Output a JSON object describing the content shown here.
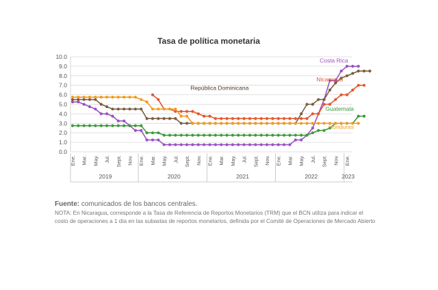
{
  "chart_data": {
    "type": "line",
    "title": "Tasa de política monetaria",
    "xlabel": "",
    "ylabel": "",
    "ylim": [
      0,
      10
    ],
    "yticks": [
      "0.0",
      "1.0",
      "2.0",
      "3.0",
      "4.0",
      "5.0",
      "6.0",
      "7.0",
      "8.0",
      "9.0",
      "10.0"
    ],
    "grid": true,
    "legend": "inline labels near series ends",
    "x_tick_labels": [
      "Ene.",
      "Mar.",
      "May.",
      "Jul.",
      "Sept.",
      "Nov.",
      "Ene.",
      "Mar.",
      "May.",
      "Jul.",
      "Sept.",
      "Nov.",
      "Ene.",
      "Mar.",
      "May.",
      "Jul.",
      "Sept.",
      "Nov.",
      "Ene.",
      "Mar.",
      "May.",
      "Jul.",
      "Sept.",
      "Nov.",
      "Ene."
    ],
    "years": [
      "2019",
      "2020",
      "2021",
      "2022",
      "2023"
    ],
    "series": [
      {
        "name": "Costa Rica",
        "color": "#9b4fc4",
        "label_x": 48.2,
        "label_y": 9.4,
        "start": 0,
        "values": [
          5.25,
          5.25,
          5.0,
          4.75,
          4.5,
          4.0,
          4.0,
          3.75,
          3.25,
          3.25,
          2.75,
          2.25,
          2.25,
          1.25,
          1.25,
          1.25,
          0.75,
          0.75,
          0.75,
          0.75,
          0.75,
          0.75,
          0.75,
          0.75,
          0.75,
          0.75,
          0.75,
          0.75,
          0.75,
          0.75,
          0.75,
          0.75,
          0.75,
          0.75,
          0.75,
          0.75,
          0.75,
          0.75,
          0.75,
          1.25,
          1.25,
          1.75,
          2.5,
          4.0,
          5.5,
          7.5,
          7.5,
          8.5,
          9.0,
          9.0,
          9.0
        ]
      },
      {
        "name": "Nicaragua",
        "color": "#e2562c",
        "label_x": 47.3,
        "label_y": 7.4,
        "start": 14,
        "values": [
          6.0,
          5.5,
          4.5,
          4.5,
          4.25,
          4.25,
          4.25,
          4.25,
          4.0,
          3.75,
          3.75,
          3.5,
          3.5,
          3.5,
          3.5,
          3.5,
          3.5,
          3.5,
          3.5,
          3.5,
          3.5,
          3.5,
          3.5,
          3.5,
          3.5,
          3.5,
          3.5,
          3.5,
          4.0,
          4.0,
          5.0,
          5.0,
          5.5,
          6.0,
          6.0,
          6.5,
          7.0,
          7.0
        ]
      },
      {
        "name": "República Dominicana",
        "color": "#7a5c3e",
        "label_x": 30.8,
        "label_y": 6.5,
        "start": 0,
        "values": [
          5.5,
          5.5,
          5.5,
          5.5,
          5.5,
          5.0,
          4.75,
          4.5,
          4.5,
          4.5,
          4.5,
          4.5,
          4.5,
          3.5,
          3.5,
          3.5,
          3.5,
          3.5,
          3.5,
          3.0,
          3.0,
          3.0,
          3.0,
          3.0,
          3.0,
          3.0,
          3.0,
          3.0,
          3.0,
          3.0,
          3.0,
          3.0,
          3.0,
          3.0,
          3.0,
          3.0,
          3.0,
          3.0,
          3.0,
          3.0,
          4.0,
          5.0,
          5.0,
          5.5,
          5.5,
          6.5,
          7.25,
          7.75,
          8.0,
          8.25,
          8.5,
          8.5,
          8.5
        ]
      },
      {
        "name": "Guatemala",
        "color": "#3a9a3a",
        "label_x": 49.2,
        "label_y": 4.3,
        "start": 0,
        "values": [
          2.75,
          2.75,
          2.75,
          2.75,
          2.75,
          2.75,
          2.75,
          2.75,
          2.75,
          2.75,
          2.75,
          2.75,
          2.75,
          2.0,
          2.0,
          2.0,
          1.75,
          1.75,
          1.75,
          1.75,
          1.75,
          1.75,
          1.75,
          1.75,
          1.75,
          1.75,
          1.75,
          1.75,
          1.75,
          1.75,
          1.75,
          1.75,
          1.75,
          1.75,
          1.75,
          1.75,
          1.75,
          1.75,
          1.75,
          1.75,
          1.75,
          1.75,
          2.0,
          2.25,
          2.25,
          2.5,
          3.0,
          3.0,
          3.0,
          3.0,
          3.75,
          3.75
        ]
      },
      {
        "name": "Honduras",
        "color": "#f29a1d",
        "label_x": 49.2,
        "label_y": 2.4,
        "start": 0,
        "values": [
          5.75,
          5.75,
          5.75,
          5.75,
          5.75,
          5.75,
          5.75,
          5.75,
          5.75,
          5.75,
          5.75,
          5.75,
          5.5,
          5.25,
          4.5,
          4.5,
          4.5,
          4.5,
          4.5,
          3.75,
          3.75,
          3.0,
          3.0,
          3.0,
          3.0,
          3.0,
          3.0,
          3.0,
          3.0,
          3.0,
          3.0,
          3.0,
          3.0,
          3.0,
          3.0,
          3.0,
          3.0,
          3.0,
          3.0,
          3.0,
          3.0,
          3.0,
          3.0,
          3.0,
          3.0,
          3.0,
          3.0,
          3.0,
          3.0,
          3.0,
          3.0
        ]
      }
    ]
  },
  "notes": {
    "source_label": "Fuente:",
    "source_text": " comunicados de los bancos centrales.",
    "note": "NOTA: En Nicaragua, corresponde a la Tasa de Referencia de Reportos Monetarios (TRM) que el BCN utiliza para indicar el costo de operaciones a 1 día en las subastas de reportos monetarios, definida por el Comité de Operaciones de Mercado Abierto"
  }
}
